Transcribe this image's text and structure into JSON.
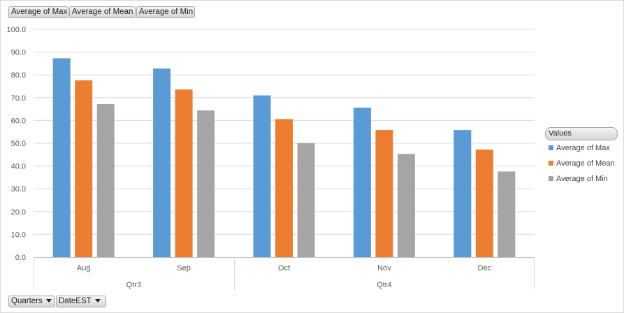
{
  "value_buttons": [
    "Average of Max",
    "Average of Mean",
    "Average of Min"
  ],
  "axis_buttons": [
    "Quarters",
    "DateEST"
  ],
  "legend": {
    "title": "Values",
    "items": [
      {
        "label": "Average of Max",
        "color": "#5b9bd5"
      },
      {
        "label": "Average of Mean",
        "color": "#ed7d31"
      },
      {
        "label": "Average of Min",
        "color": "#a5a5a5"
      }
    ]
  },
  "chart_data": {
    "type": "bar",
    "categories": [
      "Aug",
      "Sep",
      "Oct",
      "Nov",
      "Dec"
    ],
    "groups": [
      {
        "label": "Qtr3",
        "categories": [
          "Aug",
          "Sep"
        ]
      },
      {
        "label": "Qtr4",
        "categories": [
          "Oct",
          "Nov",
          "Dec"
        ]
      }
    ],
    "series": [
      {
        "name": "Average of Max",
        "color": "#5b9bd5",
        "values": [
          87.3,
          82.8,
          71.0,
          65.6,
          55.8
        ]
      },
      {
        "name": "Average of Mean",
        "color": "#ed7d31",
        "values": [
          77.6,
          73.6,
          60.6,
          55.8,
          47.2
        ]
      },
      {
        "name": "Average of Min",
        "color": "#a5a5a5",
        "values": [
          67.2,
          64.4,
          50.0,
          45.3,
          37.6
        ]
      }
    ],
    "ylim": [
      0,
      100
    ],
    "ytick_labels": [
      "0.0",
      "10.0",
      "20.0",
      "30.0",
      "40.0",
      "50.0",
      "60.0",
      "70.0",
      "80.0",
      "90.0",
      "100.0"
    ],
    "grid": true,
    "legend_position": "right"
  }
}
